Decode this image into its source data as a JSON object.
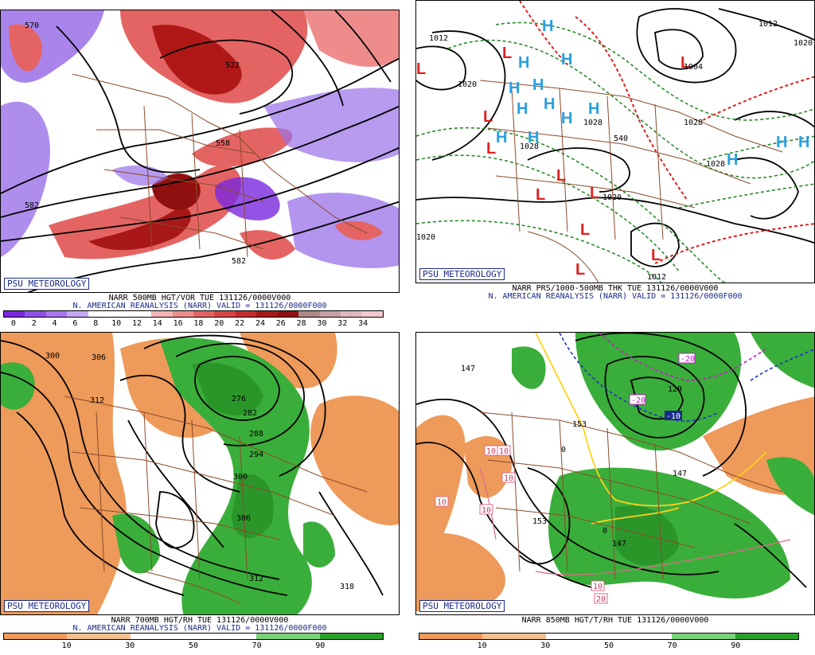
{
  "panels": [
    {
      "badge": "PSU METEOROLOGY",
      "caption1": "NARR 500MB HGT/VOR TUE 131126/0000V000",
      "caption2": "N. AMERICAN REANALYSIS (NARR) VALID = 131126/0000F000",
      "colorbar": {
        "ticks": [
          "0",
          "2",
          "4",
          "6",
          "8",
          "10",
          "12",
          "14",
          "16",
          "18",
          "20",
          "22",
          "24",
          "26",
          "28",
          "30",
          "32",
          "34"
        ],
        "colors": [
          "#7a28e0",
          "#9050e8",
          "#a878ee",
          "#c4a8f4",
          "#ffffff",
          "#ffffff",
          "#ffffff",
          "#f4b4b4",
          "#ee8c8c",
          "#e46464",
          "#d84444",
          "#c42c2c",
          "#a81818",
          "#901010",
          "#b08888",
          "#c8a0a8",
          "#e0b8c0",
          "#f4c8d0"
        ]
      },
      "contour_labels": [
        "558",
        "522",
        "558",
        "582",
        "582",
        "570"
      ]
    },
    {
      "badge": "PSU METEOROLOGY",
      "caption1": "NARR PRS/1000-500MB THK TUE 131126/0000V000",
      "caption2": "N. AMERICAN REANALYSIS (NARR) VALID = 131126/0000F000",
      "contour_labels": [
        "1012",
        "1020",
        "1028",
        "1028",
        "1028",
        "1028",
        "1020",
        "1012",
        "1012",
        "1020",
        "1004",
        "540",
        "1020",
        "1020"
      ],
      "high_symbol": "H",
      "low_symbol": "L"
    },
    {
      "badge": "PSU METEOROLOGY",
      "caption1": "NARR 700MB HGT/RH TUE 131126/0000V000",
      "caption2": "N. AMERICAN REANALYSIS (NARR) VALID = 131126/0000F000",
      "colorbar": {
        "ticks": [
          "10",
          "30",
          "50",
          "70",
          "90"
        ],
        "colors": [
          "#ee9a5a",
          "#f4c090",
          "#ffffff",
          "#ffffff",
          "#7ad27a",
          "#2aa02a"
        ]
      },
      "contour_labels": [
        "300",
        "306",
        "312",
        "276",
        "282",
        "288",
        "294",
        "300",
        "306",
        "312",
        "318"
      ]
    },
    {
      "badge": "PSU METEOROLOGY",
      "caption1": "NARR 850MB HGT/T/RH TUE 131126/0000V000",
      "caption2": "",
      "colorbar": {
        "ticks": [
          "10",
          "30",
          "50",
          "70",
          "90"
        ],
        "colors": [
          "#ee9a5a",
          "#f4c090",
          "#ffffff",
          "#ffffff",
          "#7ad27a",
          "#2aa02a"
        ]
      },
      "contour_labels": [
        "147",
        "153",
        "153",
        "147",
        "147",
        "129",
        "0",
        "0"
      ],
      "temp_labels": [
        "-20",
        "-20",
        "-10",
        "10",
        "10",
        "10",
        "10",
        "10",
        "10",
        "20"
      ]
    }
  ]
}
